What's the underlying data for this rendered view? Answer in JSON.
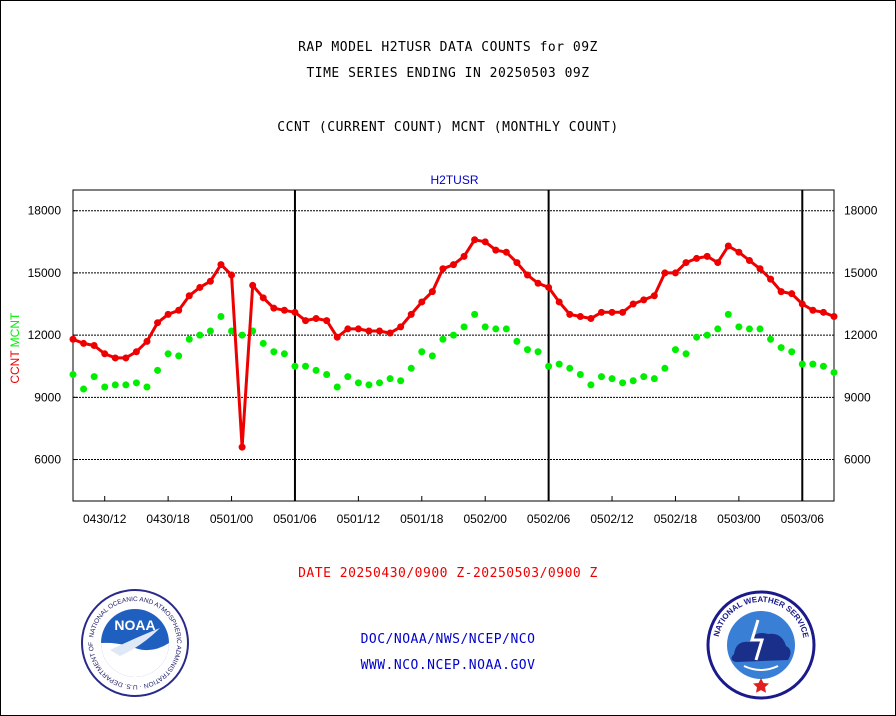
{
  "header": {
    "line1": "RAP MODEL H2TUSR DATA COUNTS for 09Z",
    "line2": "TIME SERIES ENDING IN 20250503 09Z",
    "line3": "CCNT (CURRENT COUNT) MCNT (MONTHLY COUNT)"
  },
  "footer": {
    "date_range": "DATE 20250430/0900 Z-20250503/0900 Z",
    "org": "DOC/NOAA/NWS/NCEP/NCO",
    "url": "WWW.NCO.NCEP.NOAA.GOV"
  },
  "logos": {
    "left": "noaa-logo",
    "right": "nws-logo",
    "left_text": "NOAA",
    "left_ring": "NATIONAL OCEANIC AND ATMOSPHERIC ADMINISTRATION · U.S. DEPARTMENT OF COMMERCE",
    "right_ring": "NATIONAL WEATHER SERVICE"
  },
  "colors": {
    "ccnt": "#ee0000",
    "mcnt": "#00ee00",
    "panel_title": "#0000cc",
    "footer_date": "#ee0000",
    "footer_link": "#0000cc"
  },
  "chart_data": {
    "type": "line",
    "panel_title": "H2TUSR",
    "ylabel_ccnt": "CCNT",
    "ylabel_mcnt": "MCNT",
    "ylim": [
      4000,
      19000
    ],
    "yticks": [
      6000,
      9000,
      12000,
      15000,
      18000
    ],
    "ytick_labels": [
      "6000",
      "9000",
      "12000",
      "15000",
      "18000"
    ],
    "xlim": [
      0,
      72
    ],
    "xticks": [
      3,
      9,
      15,
      21,
      27,
      33,
      39,
      45,
      51,
      57,
      63,
      69
    ],
    "xtick_labels": [
      "0430/12",
      "0430/18",
      "0501/00",
      "0501/06",
      "0501/12",
      "0501/18",
      "0502/00",
      "0502/06",
      "0502/12",
      "0502/18",
      "0503/00",
      "0503/06"
    ],
    "day_dividers": [
      21,
      45,
      69
    ],
    "grid": true,
    "series": [
      {
        "name": "CCNT",
        "x": [
          0,
          1,
          2,
          3,
          4,
          5,
          6,
          7,
          8,
          9,
          10,
          11,
          12,
          13,
          14,
          15,
          16,
          17,
          18,
          19,
          20,
          21,
          22,
          23,
          24,
          25,
          26,
          27,
          28,
          29,
          30,
          31,
          32,
          33,
          34,
          35,
          36,
          37,
          38,
          39,
          40,
          41,
          42,
          43,
          44,
          45,
          46,
          47,
          48,
          49,
          50,
          51,
          52,
          53,
          54,
          55,
          56,
          57,
          58,
          59,
          60,
          61,
          62,
          63,
          64,
          65,
          66,
          67,
          68,
          69,
          70,
          71,
          72
        ],
        "values": [
          11800,
          11600,
          11500,
          11100,
          10900,
          10900,
          11200,
          11700,
          12600,
          13000,
          13200,
          13900,
          14300,
          14600,
          15400,
          14900,
          6600,
          14400,
          13800,
          13300,
          13200,
          13100,
          12700,
          12800,
          12700,
          11900,
          12300,
          12300,
          12200,
          12200,
          12100,
          12400,
          13000,
          13600,
          14100,
          15200,
          15400,
          15800,
          16600,
          16500,
          16100,
          16000,
          15500,
          14900,
          14500,
          14300,
          13600,
          13000,
          12900,
          12800,
          13100,
          13100,
          13100,
          13500,
          13700,
          13900,
          15000,
          15000,
          15500,
          15700,
          15800,
          15500,
          16300,
          16000,
          15600,
          15200,
          14700,
          14100,
          14000,
          13500,
          13200,
          13100,
          12900
        ]
      },
      {
        "name": "MCNT",
        "x": [
          0,
          1,
          2,
          3,
          4,
          5,
          6,
          7,
          8,
          9,
          10,
          11,
          12,
          13,
          14,
          15,
          16,
          17,
          18,
          19,
          20,
          21,
          22,
          23,
          24,
          25,
          26,
          27,
          28,
          29,
          30,
          31,
          32,
          33,
          34,
          35,
          36,
          37,
          38,
          39,
          40,
          41,
          42,
          43,
          44,
          45,
          46,
          47,
          48,
          49,
          50,
          51,
          52,
          53,
          54,
          55,
          56,
          57,
          58,
          59,
          60,
          61,
          62,
          63,
          64,
          65,
          66,
          67,
          68,
          69,
          70,
          71,
          72
        ],
        "values": [
          10100,
          9400,
          10000,
          9500,
          9600,
          9600,
          9700,
          9500,
          10300,
          11100,
          11000,
          11800,
          12000,
          12200,
          12900,
          12200,
          12000,
          12200,
          11600,
          11200,
          11100,
          10500,
          10500,
          10300,
          10100,
          9500,
          10000,
          9700,
          9600,
          9700,
          9900,
          9800,
          10400,
          11200,
          11000,
          11800,
          12000,
          12400,
          13000,
          12400,
          12300,
          12300,
          11700,
          11300,
          11200,
          10500,
          10600,
          10400,
          10100,
          9600,
          10000,
          9900,
          9700,
          9800,
          10000,
          9900,
          10400,
          11300,
          11100,
          11900,
          12000,
          12300,
          13000,
          12400,
          12300,
          12300,
          11800,
          11400,
          11200,
          10600,
          10600,
          10500,
          10200
        ]
      }
    ]
  }
}
